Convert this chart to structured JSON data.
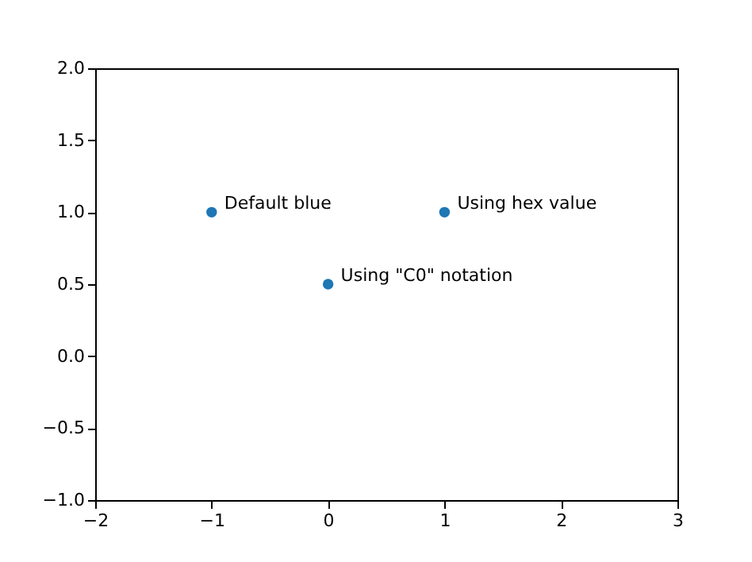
{
  "chart_data": {
    "type": "scatter",
    "x": [
      -1,
      0,
      1
    ],
    "series": [
      {
        "color": "#1f77b4",
        "values": [
          1,
          0.5,
          1
        ]
      }
    ],
    "xlim": [
      -2,
      3
    ],
    "ylim": [
      -1,
      2
    ],
    "xticks": [
      {
        "value": -2,
        "label": "−2"
      },
      {
        "value": -1,
        "label": "−1"
      },
      0,
      1,
      2,
      3
    ],
    "yticks": [
      {
        "value": -1,
        "label": "−1.0"
      },
      {
        "value": -0.5,
        "label": "−0.5"
      },
      {
        "value": 0,
        "label": "0.0"
      },
      {
        "value": 0.5,
        "label": "0.5"
      },
      {
        "value": 1,
        "label": "1.0"
      },
      {
        "value": 1.5,
        "label": "1.5"
      },
      {
        "value": 2,
        "label": "2.0"
      }
    ],
    "annotations": [
      {
        "text": "Default blue",
        "x": -1,
        "y": 1
      },
      {
        "text": "Using \"C0\" notation",
        "x": 0,
        "y": 0.5
      },
      {
        "text": "Using hex value",
        "x": 1,
        "y": 1
      }
    ],
    "marker": "circle",
    "grid": false
  }
}
